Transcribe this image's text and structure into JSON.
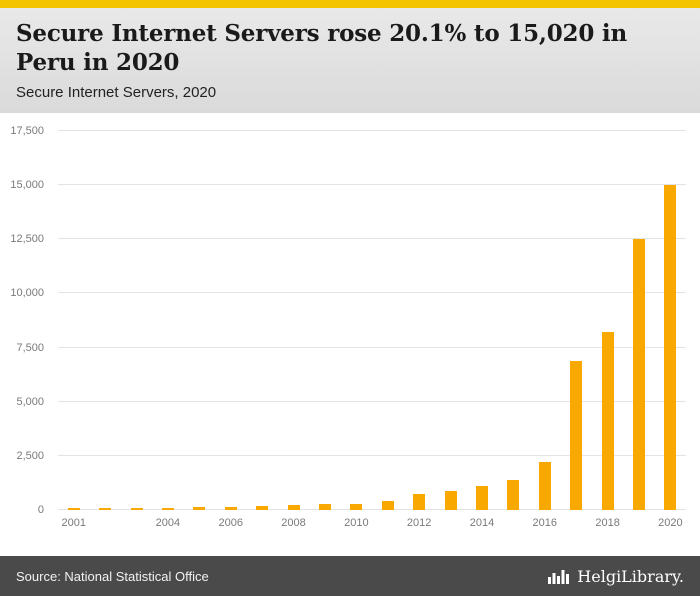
{
  "accent_color": "#F5C400",
  "header": {
    "title": "Secure Internet Servers rose 20.1% to 15,020 in Peru in 2020",
    "subtitle": "Secure Internet Servers, 2020"
  },
  "chart_data": {
    "type": "bar",
    "title": "Secure Internet Servers rose 20.1% to 15,020 in Peru in 2020",
    "subtitle": "Secure Internet Servers, 2020",
    "categories": [
      "2001",
      "2002",
      "2003",
      "2004",
      "2005",
      "2006",
      "2007",
      "2008",
      "2009",
      "2010",
      "2011",
      "2012",
      "2013",
      "2014",
      "2015",
      "2016",
      "2017",
      "2018",
      "2019",
      "2020"
    ],
    "values": [
      25,
      50,
      80,
      110,
      120,
      150,
      180,
      230,
      280,
      260,
      400,
      750,
      900,
      1100,
      1400,
      2200,
      6900,
      8200,
      12506,
      15020
    ],
    "bar_color": "#F9A800",
    "ylim": [
      0,
      17500
    ],
    "yticks": [
      0,
      2500,
      5000,
      7500,
      10000,
      12500,
      15000,
      17500
    ],
    "ytick_labels": [
      "0",
      "2,500",
      "5,000",
      "7,500",
      "10,000",
      "12,500",
      "15,000",
      "17,500"
    ],
    "xtick_labels": [
      "2001",
      "2004",
      "2006",
      "2008",
      "2010",
      "2012",
      "2014",
      "2016",
      "2018",
      "2020"
    ],
    "grid": true,
    "legend": "none"
  },
  "footer": {
    "source": "Source: National Statistical Office",
    "logo_text": "HelgiLibrary.",
    "logo_icon": "bar-chart-icon"
  }
}
